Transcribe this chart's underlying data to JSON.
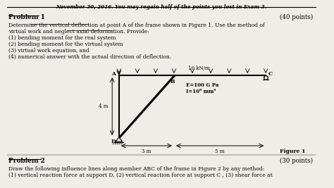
{
  "background_color": "#f0ede8",
  "header_text": "November 30, 2016. You may regain half of the points you lost in Exam 3.",
  "problem1_title": "Problem 1",
  "problem1_points": "(40 points)",
  "problem1_body": [
    "Determine the vertical deflection at point A of the frame shown in Figure 1. Use the method of",
    "virtual work and neglect axial deformation. Provide:",
    "(1) bending moment for the real system",
    "(2) bending moment for the virtual system",
    "(3) virtual work equation, and",
    "(4) numerical answer with the actual direction of deflection."
  ],
  "problem2_title": "Problem 2",
  "problem2_points": "(30 points)",
  "problem2_body": [
    "Draw the following influence lines along member ABC of the frame in Figure 2 by any method:",
    "(1) vertical reaction force at support D, (2) vertical reaction force at support C , (3) shear force at"
  ],
  "figure_label": "Figure 1",
  "load_label": "10 kN/m",
  "material_label1": "E=100 G Pa",
  "material_label2": "I=10⁶ mm⁴",
  "dim_label1": "4 m",
  "dim_label2": "3 m",
  "dim_label3": "5 m",
  "point_A": "A",
  "point_B": "B",
  "point_C": "C",
  "point_D": "D"
}
